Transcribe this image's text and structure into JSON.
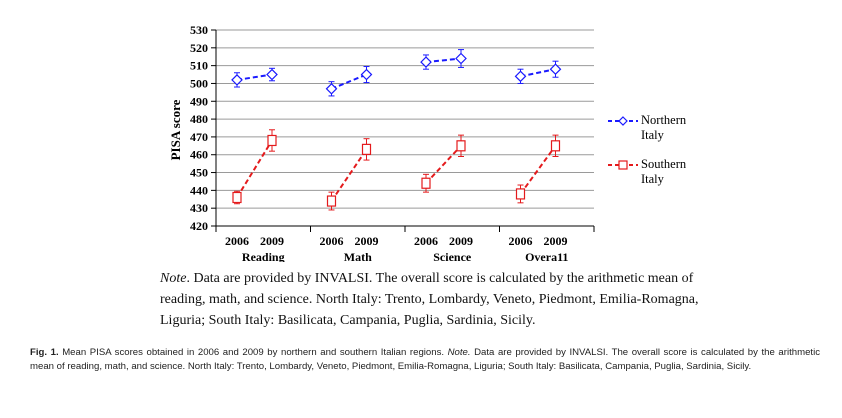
{
  "chart_data": {
    "type": "line",
    "ylabel": "PISA score",
    "ylim": [
      420,
      530
    ],
    "yticks": [
      420,
      430,
      440,
      450,
      460,
      470,
      480,
      490,
      500,
      510,
      520,
      530
    ],
    "groups": [
      {
        "name": "Reading",
        "years": [
          "2006",
          "2009"
        ]
      },
      {
        "name": "Math",
        "years": [
          "2006",
          "2009"
        ]
      },
      {
        "name": "Science",
        "years": [
          "2006",
          "2009"
        ]
      },
      {
        "name": "Overa11",
        "years": [
          "2006",
          "2009"
        ]
      }
    ],
    "series": [
      {
        "name": "Northern Italy",
        "color": "#1a1aff",
        "marker": "diamond",
        "values": [
          [
            502,
            505
          ],
          [
            497,
            505
          ],
          [
            512,
            514
          ],
          [
            504,
            508
          ]
        ],
        "err": [
          [
            4,
            3.5
          ],
          [
            4,
            4.5
          ],
          [
            4,
            5
          ],
          [
            4,
            4.5
          ]
        ]
      },
      {
        "name": "Southern Italy",
        "color": "#e41a1c",
        "marker": "square",
        "values": [
          [
            436,
            468
          ],
          [
            434,
            463
          ],
          [
            444,
            465
          ],
          [
            438,
            465
          ]
        ],
        "err": [
          [
            3.5,
            6
          ],
          [
            5,
            6
          ],
          [
            5,
            6
          ],
          [
            5,
            6
          ]
        ]
      }
    ],
    "legend_position": "right",
    "grid": "horizontal"
  },
  "note": {
    "label": "Note",
    "text": ". Data are provided by INVALSI. The overall score is calculated by the arithmetic mean of reading, math, and science. North Italy: Trento, Lombardy, Veneto, Piedmont, Emilia-Romagna, Liguria; South Italy: Basilicata, Campania, Puglia, Sardinia, Sicily."
  },
  "caption": {
    "label": "Fig. 1.",
    "text1": " Mean PISA scores obtained in 2006 and 2009 by northern and southern Italian regions. ",
    "note_label": "Note.",
    "text2": " Data are provided by INVALSI. The overall score is calculated by the arithmetic mean of reading, math, and science. North Italy: Trento, Lombardy, Veneto, Piedmont, Emilia-Romagna, Liguria; South Italy: Basilicata, Campania, Puglia, Sardinia, Sicily."
  }
}
